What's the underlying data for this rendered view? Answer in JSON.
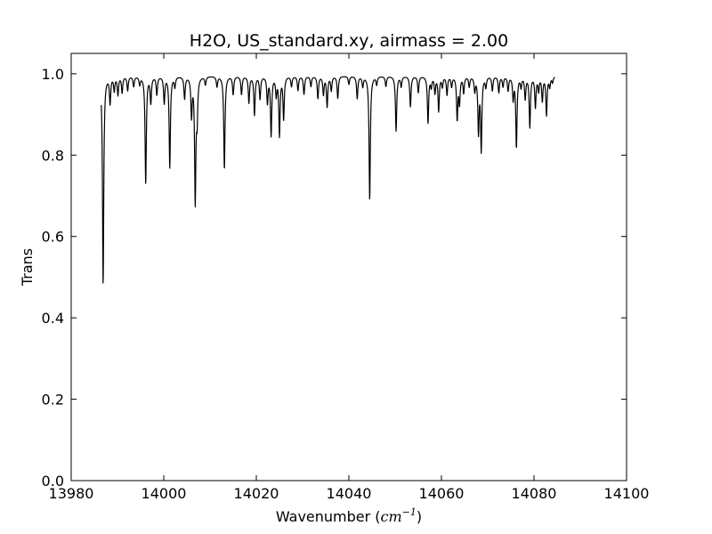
{
  "chart_data": {
    "type": "line",
    "title": "H2O, US_standard.xy, airmass = 2.00",
    "xlabel_text": "Wavenumber (",
    "xlabel_unit_base": "cm",
    "xlabel_unit_exp": "−1",
    "xlabel_close": ")",
    "ylabel": "Trans",
    "xlim": [
      13980,
      14100
    ],
    "ylim": [
      0.0,
      1.05
    ],
    "x_ticks": [
      13980,
      14000,
      14020,
      14040,
      14060,
      14080,
      14100
    ],
    "x_tick_labels": [
      "13980",
      "14000",
      "14020",
      "14040",
      "14060",
      "14080",
      "14100"
    ],
    "y_ticks": [
      0.0,
      0.2,
      0.4,
      0.6,
      0.8,
      1.0
    ],
    "y_tick_labels": [
      "0.0",
      "0.2",
      "0.4",
      "0.6",
      "0.8",
      "1.0"
    ],
    "grid": false,
    "line_color": "#000000",
    "x_range": [
      13986.5,
      14084.5
    ],
    "start_value": 0.985,
    "continuum": 0.995,
    "absorption_lines": [
      [
        13986.9,
        0.48
      ],
      [
        13988.4,
        0.93
      ],
      [
        13989.3,
        0.96
      ],
      [
        13990.1,
        0.95
      ],
      [
        13991.0,
        0.955
      ],
      [
        13992.2,
        0.96
      ],
      [
        13993.5,
        0.97
      ],
      [
        13994.8,
        0.975
      ],
      [
        13996.1,
        0.73
      ],
      [
        13997.2,
        0.93
      ],
      [
        13998.5,
        0.95
      ],
      [
        14000.1,
        0.93
      ],
      [
        14001.3,
        0.77
      ],
      [
        14002.4,
        0.97
      ],
      [
        14004.5,
        0.94
      ],
      [
        14006.0,
        0.9
      ],
      [
        14006.8,
        0.69
      ],
      [
        14007.2,
        0.9
      ],
      [
        14009.0,
        0.975
      ],
      [
        14011.5,
        0.97
      ],
      [
        14013.1,
        0.765
      ],
      [
        14015.0,
        0.95
      ],
      [
        14016.8,
        0.95
      ],
      [
        14018.4,
        0.93
      ],
      [
        14019.6,
        0.9
      ],
      [
        14020.8,
        0.94
      ],
      [
        14022.4,
        0.93
      ],
      [
        14023.2,
        0.85
      ],
      [
        14024.3,
        0.95
      ],
      [
        14025.0,
        0.85
      ],
      [
        14025.9,
        0.89
      ],
      [
        14027.6,
        0.97
      ],
      [
        14029.0,
        0.96
      ],
      [
        14030.3,
        0.95
      ],
      [
        14031.8,
        0.97
      ],
      [
        14033.3,
        0.94
      ],
      [
        14034.5,
        0.95
      ],
      [
        14035.3,
        0.92
      ],
      [
        14036.2,
        0.96
      ],
      [
        14037.6,
        0.94
      ],
      [
        14040.0,
        0.975
      ],
      [
        14041.8,
        0.94
      ],
      [
        14043.0,
        0.97
      ],
      [
        14044.5,
        0.69
      ],
      [
        14046.0,
        0.975
      ],
      [
        14048.0,
        0.97
      ],
      [
        14050.2,
        0.86
      ],
      [
        14051.3,
        0.97
      ],
      [
        14053.3,
        0.92
      ],
      [
        14055.0,
        0.955
      ],
      [
        14057.1,
        0.88
      ],
      [
        14057.8,
        0.97
      ],
      [
        14058.6,
        0.955
      ],
      [
        14059.4,
        0.91
      ],
      [
        14060.2,
        0.97
      ],
      [
        14061.2,
        0.95
      ],
      [
        14062.2,
        0.97
      ],
      [
        14063.4,
        0.89
      ],
      [
        14063.9,
        0.93
      ],
      [
        14064.8,
        0.955
      ],
      [
        14066.0,
        0.97
      ],
      [
        14067.2,
        0.96
      ],
      [
        14068.0,
        0.86
      ],
      [
        14068.6,
        0.815
      ],
      [
        14069.6,
        0.97
      ],
      [
        14071.0,
        0.96
      ],
      [
        14072.4,
        0.955
      ],
      [
        14073.3,
        0.97
      ],
      [
        14074.4,
        0.96
      ],
      [
        14075.5,
        0.94
      ],
      [
        14076.2,
        0.82
      ],
      [
        14077.2,
        0.97
      ],
      [
        14078.1,
        0.94
      ],
      [
        14079.1,
        0.87
      ],
      [
        14080.3,
        0.92
      ],
      [
        14081.0,
        0.96
      ],
      [
        14081.8,
        0.935
      ],
      [
        14082.7,
        0.9
      ],
      [
        14083.4,
        0.97
      ],
      [
        14084.0,
        0.98
      ]
    ]
  }
}
